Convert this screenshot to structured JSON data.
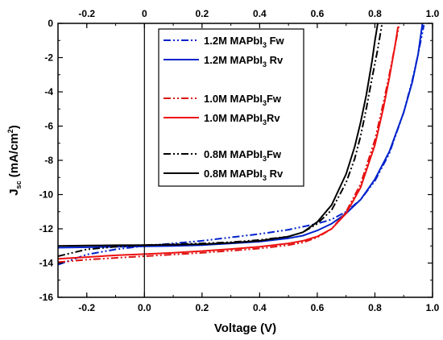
{
  "chart_data": {
    "type": "line",
    "xlabel": "Voltage (V)",
    "ylabel": {
      "prefix": "J",
      "sub": "sc",
      "units_prefix": " (mA/cm",
      "units_sup": "2",
      "units_suffix": ")"
    },
    "xlim": [
      -0.3,
      1.0
    ],
    "ylim": [
      -16,
      0
    ],
    "x_ticks": [
      -0.2,
      0.0,
      0.2,
      0.4,
      0.6,
      0.8,
      1.0
    ],
    "x_tick_labels": [
      "-0.2",
      "0.0",
      "0.2",
      "0.4",
      "0.6",
      "0.8",
      "1.0"
    ],
    "top_x_tick_labels": [
      "-0.2",
      "0",
      "0.2",
      "0.4",
      "0.6",
      "0.8",
      "1.0"
    ],
    "y_ticks": [
      0,
      -2,
      -4,
      -6,
      -8,
      -10,
      -12,
      -14,
      -16
    ],
    "y_tick_labels": [
      "0",
      "-2",
      "-4",
      "-6",
      "-8",
      "-10",
      "-12",
      "-14",
      "-16"
    ],
    "grid": false,
    "zero_line": true,
    "legend_position": "top-right",
    "series": [
      {
        "name_parts": [
          "1.2M MAPbI",
          "3",
          " Fw"
        ],
        "color": "#0022cc",
        "dash": "dash-dot-dot",
        "x": [
          -0.3,
          -0.2,
          -0.1,
          0.0,
          0.1,
          0.2,
          0.3,
          0.4,
          0.5,
          0.6,
          0.65,
          0.7,
          0.75,
          0.8,
          0.85,
          0.9,
          0.93,
          0.95,
          0.97
        ],
        "y": [
          -14.1,
          -13.5,
          -13.2,
          -13.0,
          -12.85,
          -12.7,
          -12.5,
          -12.3,
          -12.05,
          -11.7,
          -11.45,
          -11.0,
          -10.3,
          -9.2,
          -7.6,
          -5.2,
          -3.3,
          -1.8,
          -0.1
        ]
      },
      {
        "name_parts": [
          "1.2M MAPbI",
          "3",
          " Rv"
        ],
        "color": "#0022cc",
        "dash": "solid",
        "x": [
          -0.3,
          -0.2,
          -0.1,
          0.0,
          0.1,
          0.2,
          0.3,
          0.4,
          0.5,
          0.55,
          0.6,
          0.65,
          0.7,
          0.75,
          0.8,
          0.85,
          0.9,
          0.93,
          0.95,
          0.965
        ],
        "y": [
          -13.1,
          -13.08,
          -13.05,
          -13.02,
          -13.0,
          -12.95,
          -12.85,
          -12.75,
          -12.55,
          -12.4,
          -12.1,
          -11.7,
          -11.1,
          -10.3,
          -9.1,
          -7.5,
          -5.2,
          -3.4,
          -1.8,
          0.0
        ]
      },
      {
        "name_parts": [
          "1.0M MAPbI",
          "3",
          "Fw"
        ],
        "color": "#dd1111",
        "dash": "dash-dot-dot",
        "x": [
          -0.3,
          -0.2,
          -0.1,
          0.0,
          0.1,
          0.2,
          0.3,
          0.4,
          0.5,
          0.55,
          0.6,
          0.65,
          0.7,
          0.75,
          0.8,
          0.83,
          0.85,
          0.87,
          0.885
        ],
        "y": [
          -13.95,
          -13.8,
          -13.7,
          -13.6,
          -13.5,
          -13.4,
          -13.28,
          -13.15,
          -12.95,
          -12.8,
          -12.5,
          -12.0,
          -11.0,
          -9.4,
          -6.8,
          -4.6,
          -3.0,
          -1.3,
          0.0
        ]
      },
      {
        "name_parts": [
          "1.0M MAPbI",
          "3",
          "Rv"
        ],
        "color": "#ee1111",
        "dash": "solid",
        "x": [
          -0.3,
          -0.2,
          -0.1,
          0.0,
          0.1,
          0.2,
          0.3,
          0.4,
          0.5,
          0.55,
          0.6,
          0.65,
          0.7,
          0.75,
          0.8,
          0.83,
          0.85,
          0.87,
          0.88
        ],
        "y": [
          -13.75,
          -13.65,
          -13.55,
          -13.48,
          -13.4,
          -13.3,
          -13.18,
          -13.05,
          -12.85,
          -12.7,
          -12.45,
          -12.0,
          -11.1,
          -9.6,
          -7.1,
          -4.9,
          -3.2,
          -1.3,
          -0.2
        ]
      },
      {
        "name_parts": [
          "0.8M MAPbI",
          "3",
          "Fw"
        ],
        "color": "#000000",
        "dash": "dash-dot-dot",
        "x": [
          -0.3,
          -0.2,
          -0.1,
          0.0,
          0.1,
          0.2,
          0.3,
          0.4,
          0.5,
          0.55,
          0.6,
          0.65,
          0.7,
          0.73,
          0.75,
          0.77,
          0.79,
          0.81,
          0.82,
          0.825
        ],
        "y": [
          -13.6,
          -13.2,
          -13.05,
          -12.95,
          -12.9,
          -12.85,
          -12.78,
          -12.65,
          -12.45,
          -12.2,
          -11.7,
          -10.9,
          -9.3,
          -7.9,
          -6.6,
          -5.0,
          -3.2,
          -1.5,
          -0.5,
          0.0
        ]
      },
      {
        "name_parts": [
          "0.8M MAPbI",
          "3",
          " Rv"
        ],
        "color": "#000000",
        "dash": "solid",
        "x": [
          -0.3,
          -0.2,
          -0.1,
          0.0,
          0.1,
          0.2,
          0.3,
          0.4,
          0.5,
          0.55,
          0.6,
          0.65,
          0.7,
          0.73,
          0.75,
          0.77,
          0.79,
          0.8,
          0.81
        ],
        "y": [
          -13.0,
          -12.98,
          -12.96,
          -12.95,
          -12.93,
          -12.9,
          -12.82,
          -12.7,
          -12.45,
          -12.2,
          -11.6,
          -10.6,
          -8.8,
          -7.2,
          -5.8,
          -4.2,
          -2.2,
          -1.0,
          0.0
        ]
      }
    ]
  }
}
